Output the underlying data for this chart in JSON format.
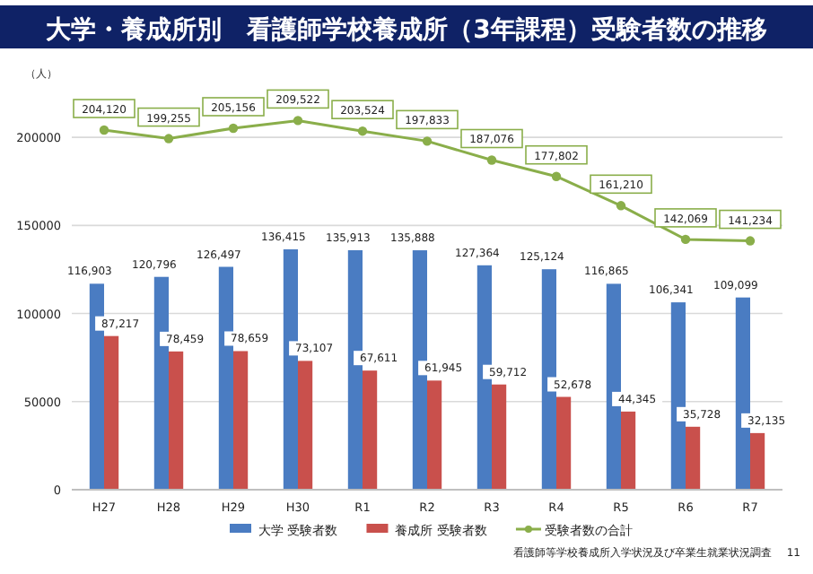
{
  "chart_data": {
    "type": "bar",
    "title": "大学・養成所別　看護師学校養成所（3年課程）受験者数の推移",
    "ylabel": "（人）",
    "categories": [
      "H27",
      "H28",
      "H29",
      "H30",
      "R1",
      "R2",
      "R3",
      "R4",
      "R5",
      "R6",
      "R7"
    ],
    "series": [
      {
        "name": "大学 受験者数",
        "color": "#4a7cc2",
        "values": [
          116903,
          120796,
          126497,
          136415,
          135913,
          135888,
          127364,
          125124,
          116865,
          106341,
          109099
        ],
        "value_labels": [
          "116,903",
          "120,796",
          "126,497",
          "136,415",
          "135,913",
          "135,888",
          "127,364",
          "125,124",
          "116,865",
          "106,341",
          "109,099"
        ]
      },
      {
        "name": "養成所 受験者数",
        "color": "#c9504c",
        "values": [
          87217,
          78459,
          78659,
          73107,
          67611,
          61945,
          59712,
          52678,
          44345,
          35728,
          32135
        ],
        "value_labels": [
          "87,217",
          "78,459",
          "78,659",
          "73,107",
          "67,611",
          "61,945",
          "59,712",
          "52,678",
          "44,345",
          "35,728",
          "32,135"
        ]
      },
      {
        "name": "受験者数の合計",
        "type": "line",
        "color": "#8aae4a",
        "marker": "circle",
        "values": [
          204120,
          199255,
          205156,
          209522,
          203524,
          197833,
          187076,
          177802,
          161210,
          142069,
          141234
        ],
        "value_labels": [
          "204,120",
          "199,255",
          "205,156",
          "209,522",
          "203,524",
          "197,833",
          "187,076",
          "177,802",
          "161,210",
          "142,069",
          "141,234"
        ]
      }
    ],
    "ylim": [
      0,
      225000
    ],
    "yticks": [
      0,
      50000,
      100000,
      150000,
      200000
    ],
    "grid": "y",
    "legend": "bottom",
    "annotations": [
      "看護師等学校養成所入学状況及び卒業生就業状況調査",
      "11"
    ]
  }
}
